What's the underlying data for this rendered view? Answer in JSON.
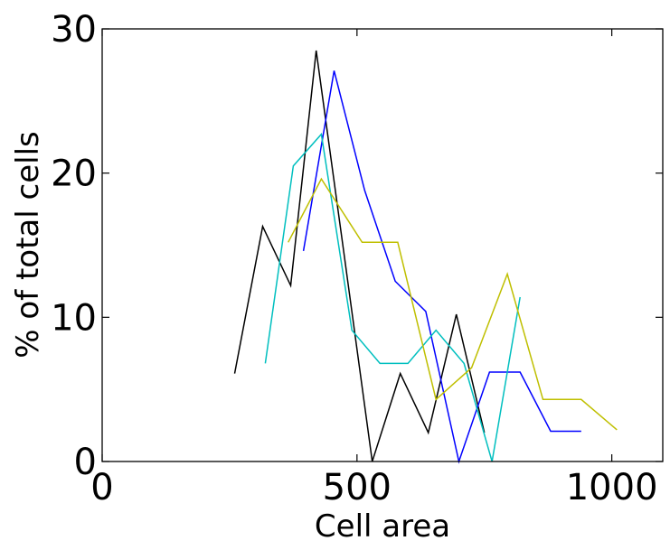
{
  "chart_data": {
    "type": "line",
    "title": "",
    "xlabel": "Cell area",
    "ylabel": "% of total cells",
    "xlim": [
      0,
      1100
    ],
    "ylim": [
      0,
      30
    ],
    "xticks": [
      0,
      500,
      1000
    ],
    "yticks": [
      0,
      10,
      20,
      30
    ],
    "xtick_labels": [
      "0",
      "500",
      "1000"
    ],
    "ytick_labels": [
      "0",
      "10",
      "20",
      "30"
    ],
    "grid": false,
    "legend": "none",
    "series": [
      {
        "color": "#000000",
        "x": [
          260,
          315,
          370,
          420,
          475,
          530,
          585,
          640,
          695,
          750
        ],
        "y": [
          6.1,
          16.3,
          12.2,
          28.5,
          14.3,
          0,
          6.1,
          2.0,
          10.2,
          2.0
        ]
      },
      {
        "color": "#0000ff",
        "x": [
          395,
          455,
          515,
          575,
          635,
          700,
          760,
          820,
          880,
          940
        ],
        "y": [
          14.6,
          27.1,
          18.8,
          12.5,
          10.4,
          0,
          6.2,
          6.2,
          2.1,
          2.1
        ]
      },
      {
        "color": "#00bfbf",
        "x": [
          320,
          375,
          430,
          490,
          545,
          600,
          655,
          710,
          765,
          820
        ],
        "y": [
          6.8,
          20.5,
          22.7,
          9.1,
          6.8,
          6.8,
          9.1,
          6.8,
          0,
          11.4
        ]
      },
      {
        "color": "#bfbf00",
        "x": [
          365,
          430,
          510,
          580,
          655,
          725,
          795,
          865,
          940,
          1010
        ],
        "y": [
          15.2,
          19.6,
          15.2,
          15.2,
          4.3,
          6.5,
          13.0,
          4.3,
          4.3,
          2.2
        ]
      }
    ]
  }
}
